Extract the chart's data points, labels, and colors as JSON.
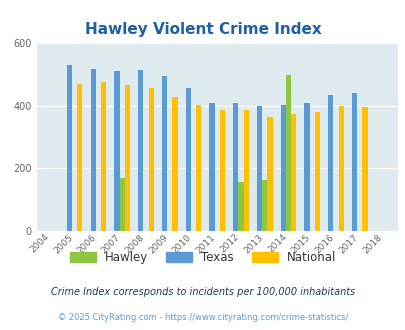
{
  "title": "Hawley Violent Crime Index",
  "years": [
    2004,
    2005,
    2006,
    2007,
    2008,
    2009,
    2010,
    2011,
    2012,
    2013,
    2014,
    2015,
    2016,
    2017,
    2018
  ],
  "hawley": [
    null,
    null,
    null,
    170,
    null,
    null,
    null,
    null,
    155,
    163,
    497,
    null,
    null,
    null,
    null
  ],
  "texas": [
    null,
    530,
    518,
    510,
    512,
    496,
    456,
    408,
    408,
    400,
    403,
    408,
    435,
    440,
    null
  ],
  "national": [
    null,
    470,
    474,
    466,
    457,
    429,
    403,
    387,
    387,
    363,
    373,
    380,
    398,
    395,
    null
  ],
  "bar_color_hawley": "#8dc63f",
  "bar_color_texas": "#5b9bd5",
  "bar_color_national": "#ffc000",
  "bg_color": "#deeaee",
  "title_color": "#1f5fa6",
  "ylabel_max": 600,
  "yticks": [
    0,
    200,
    400,
    600
  ],
  "subtitle": "Crime Index corresponds to incidents per 100,000 inhabitants",
  "footer": "© 2025 CityRating.com - https://www.cityrating.com/crime-statistics/",
  "subtitle_color": "#1a3a5c",
  "footer_color": "#5b9bd5",
  "grid_color": "#ffffff"
}
